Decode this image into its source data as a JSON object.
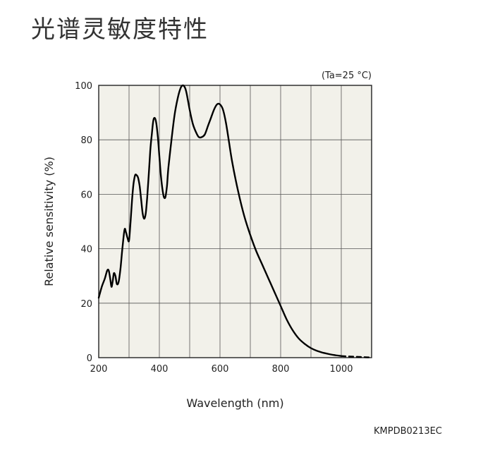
{
  "title": "光谱灵敏度特性",
  "condition": "(Ta=25 °C)",
  "code": "KMPDB0213EC",
  "chart_data": {
    "type": "line",
    "title": "光谱灵敏度特性",
    "xlabel": "Wavelength (nm)",
    "ylabel": "Relative sensitivity (%)",
    "xlim": [
      200,
      1100
    ],
    "ylim": [
      0,
      100
    ],
    "xticks": [
      200,
      400,
      600,
      800,
      1000
    ],
    "yticks": [
      0,
      20,
      40,
      60,
      80,
      100
    ],
    "x_gridlines": [
      300,
      400,
      500,
      600,
      700,
      800,
      900,
      1000
    ],
    "y_gridlines": [
      20,
      40,
      60,
      80
    ],
    "grid": true,
    "plot_background": "#f2f1ea",
    "line_color": "#000000",
    "series": [
      {
        "x": [
          200,
          210,
          220,
          228,
          233,
          238,
          242,
          246,
          250,
          255,
          260,
          266,
          272,
          278,
          285,
          290,
          295,
          300,
          305,
          310,
          315,
          320,
          325,
          330,
          335,
          340,
          345,
          350,
          355,
          360,
          365,
          370,
          375,
          380,
          385,
          390,
          395,
          400,
          405,
          410,
          415,
          420,
          425,
          430,
          440,
          450,
          460,
          470,
          478,
          485,
          490,
          500,
          510,
          520,
          530,
          540,
          550,
          560,
          570,
          580,
          590,
          600,
          610,
          620,
          630,
          640,
          660,
          680,
          700,
          720,
          740,
          760,
          780,
          800,
          820,
          840,
          860,
          880,
          900,
          920,
          940,
          960,
          980,
          1000
        ],
        "y": [
          22,
          26,
          29,
          32,
          32,
          29,
          26,
          28,
          31,
          30,
          27,
          28,
          33,
          40,
          47,
          46,
          44,
          43,
          50,
          58,
          64,
          67,
          67,
          66,
          63,
          58,
          53,
          51,
          53,
          59,
          67,
          76,
          82,
          87,
          88,
          86,
          81,
          74,
          67,
          62,
          59,
          59,
          63,
          70,
          80,
          89,
          95,
          99,
          100,
          99,
          97,
          91,
          86,
          83,
          81,
          81,
          82,
          85,
          88,
          91,
          93,
          93,
          91,
          86,
          79,
          72,
          61,
          52,
          45,
          39,
          34,
          29,
          24,
          19,
          14,
          10,
          7,
          5,
          3.5,
          2.5,
          1.8,
          1.3,
          0.9,
          0.6
        ]
      },
      {
        "dashed": true,
        "x": [
          1000,
          1020,
          1040,
          1060,
          1080,
          1100
        ],
        "y": [
          0.6,
          0.45,
          0.35,
          0.25,
          0.15,
          0.05
        ]
      }
    ]
  }
}
